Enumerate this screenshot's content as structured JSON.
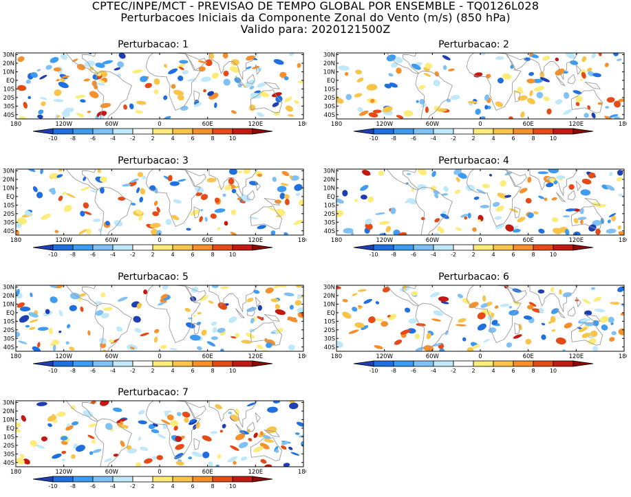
{
  "header": {
    "line1": "CPTEC/INPE/MCT - PREVISAO DE TEMPO GLOBAL POR ENSEMBLE - TQ0126L028",
    "line2": "Perturbacoes Iniciais da Componente Zonal do Vento (m/s) (850 hPa)",
    "line3": "Valido para: 2020121500Z"
  },
  "chart_data": {
    "type": "heatmap",
    "variable": "Perturbacoes da componente zonal do vento a 850 hPa",
    "units": "m/s",
    "x_ticks": [
      "180",
      "120W",
      "60W",
      "0",
      "60E",
      "120E",
      "180"
    ],
    "y_ticks": [
      "30N",
      "20N",
      "10N",
      "EQ",
      "10S",
      "20S",
      "30S",
      "40S"
    ],
    "xlim": [
      -180,
      180
    ],
    "ylim": [
      -45,
      32
    ],
    "colorbar": {
      "levels": [
        -10,
        -8,
        -6,
        -4,
        -2,
        2,
        4,
        6,
        8,
        10
      ],
      "labels": [
        "-10",
        "-8",
        "-6",
        "-4",
        "-2",
        "2",
        "4",
        "6",
        "8",
        "10"
      ],
      "colors": [
        "#1e3fb2",
        "#1f6fe0",
        "#3d9bf2",
        "#7fc1f5",
        "#bfe8fa",
        "#ffffff",
        "#fdec7a",
        "#f9c44a",
        "#f5902c",
        "#e64a17",
        "#c21a12",
        "#8c0a07"
      ]
    },
    "panels": [
      {
        "title": "Perturbacao: 1"
      },
      {
        "title": "Perturbacao: 2"
      },
      {
        "title": "Perturbacao: 3"
      },
      {
        "title": "Perturbacao: 4"
      },
      {
        "title": "Perturbacao: 5"
      },
      {
        "title": "Perturbacao: 6"
      },
      {
        "title": "Perturbacao: 7"
      }
    ]
  }
}
